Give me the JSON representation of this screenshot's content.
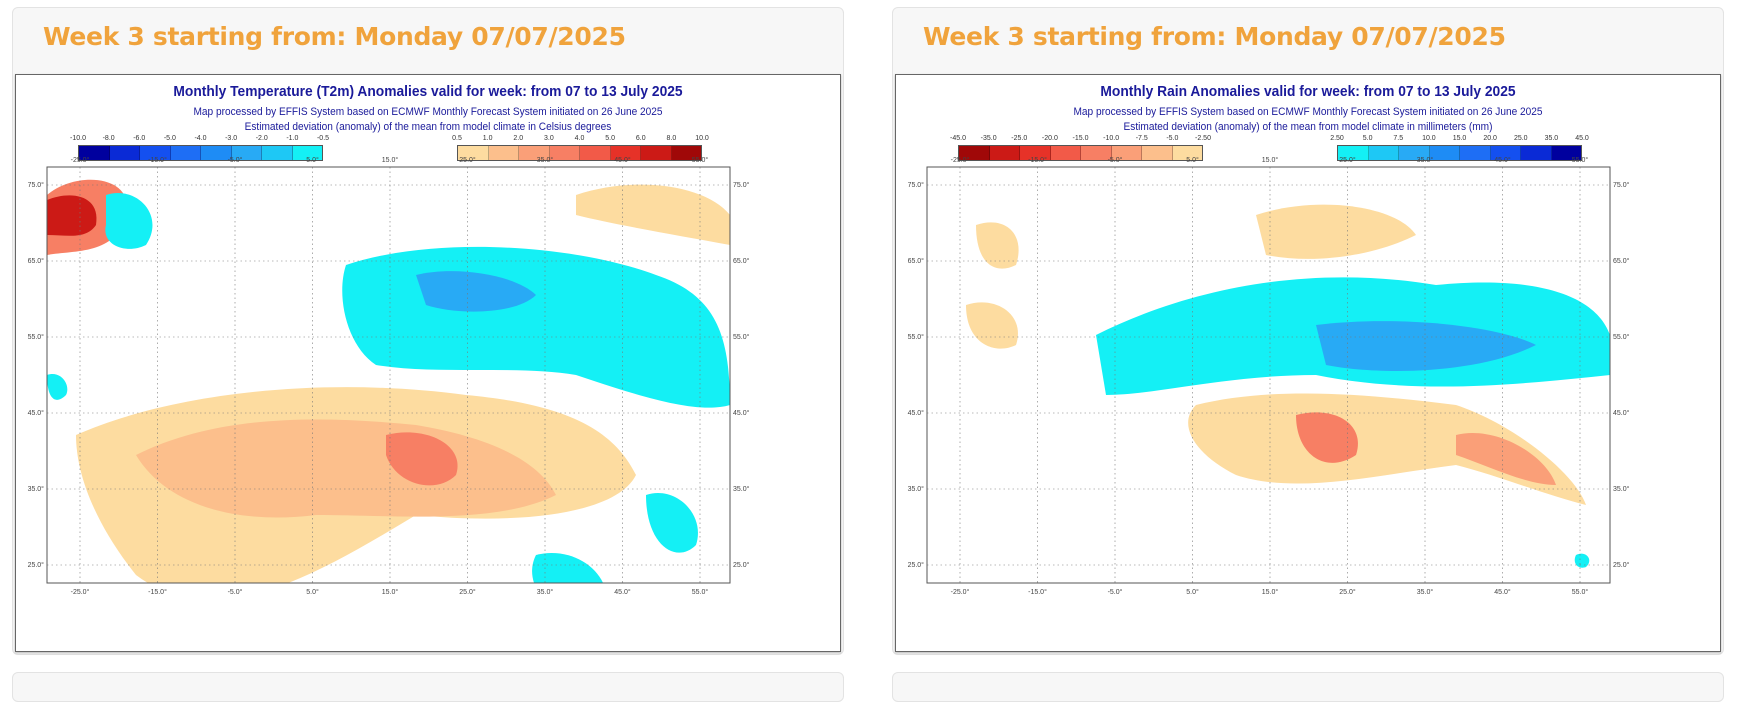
{
  "panels": [
    {
      "id": "temperature",
      "header_title": "Week 3 starting from: Monday 07/07/2025",
      "map": {
        "title": "Monthly Temperature (T2m) Anomalies valid for week: from 07 to 13 July 2025",
        "subtitle1": "Map processed by EFFIS System based on ECMWF Monthly Forecast System initiated on 26 June 2025",
        "subtitle2": "Estimated deviation (anomaly) of the mean from model climate in Celsius degrees",
        "legend_left": {
          "ticks": [
            "-10.0",
            "-8.0",
            "-6.0",
            "-5.0",
            "-4.0",
            "-3.0",
            "-2.0",
            "-1.0",
            "-0.5"
          ],
          "colors": [
            "#00009e",
            "#0a2ad6",
            "#1450f0",
            "#1e6ef5",
            "#1e8cf5",
            "#28aaf5",
            "#1ec8f5",
            "#14f0f5"
          ]
        },
        "legend_right": {
          "ticks": [
            "0.5",
            "1.0",
            "2.0",
            "3.0",
            "4.0",
            "5.0",
            "6.0",
            "8.0",
            "10.0"
          ],
          "colors": [
            "#fddca0",
            "#fcbf8c",
            "#fa9f78",
            "#f77f64",
            "#f25a48",
            "#e63228",
            "#cc1a16",
            "#a00808"
          ]
        },
        "lon_labels": [
          "-25.0°",
          "-15.0°",
          "-5.0°",
          "5.0°",
          "15.0°",
          "25.0°",
          "35.0°",
          "45.0°",
          "55.0°"
        ],
        "lat_labels": [
          "75.0°",
          "65.0°",
          "55.0°",
          "45.0°",
          "35.0°",
          "25.0°"
        ]
      }
    },
    {
      "id": "rain",
      "header_title": "Week 3 starting from: Monday 07/07/2025",
      "map": {
        "title": "Monthly Rain Anomalies valid for week: from 07 to 13 July 2025",
        "subtitle1": "Map processed by EFFIS System based on ECMWF Monthly Forecast System initiated on 26 June 2025",
        "subtitle2": "Estimated deviation (anomaly) of the mean from model climate in millimeters (mm)",
        "legend_left": {
          "ticks": [
            "-45.0",
            "-35.0",
            "-25.0",
            "-20.0",
            "-15.0",
            "-10.0",
            "-7.5",
            "-5.0",
            "-2.50"
          ],
          "colors": [
            "#a00808",
            "#cc1a16",
            "#e63228",
            "#f25a48",
            "#f77f64",
            "#fa9f78",
            "#fcbf8c",
            "#fddca0"
          ]
        },
        "legend_right": {
          "ticks": [
            "2.50",
            "5.0",
            "7.5",
            "10.0",
            "15.0",
            "20.0",
            "25.0",
            "35.0",
            "45.0"
          ],
          "colors": [
            "#14f0f5",
            "#1ec8f5",
            "#28aaf5",
            "#1e8cf5",
            "#1e6ef5",
            "#1450f0",
            "#0a2ad6",
            "#00009e"
          ]
        },
        "lon_labels": [
          "-25.0°",
          "-15.0°",
          "-5.0°",
          "5.0°",
          "15.0°",
          "25.0°",
          "35.0°",
          "45.0°",
          "55.0°"
        ],
        "lat_labels": [
          "75.0°",
          "65.0°",
          "55.0°",
          "45.0°",
          "35.0°",
          "25.0°"
        ]
      }
    }
  ],
  "colors": {
    "header_title": "#f0a33c",
    "map_title": "#1a1a9a",
    "panel_bg": "#f7f7f7"
  }
}
